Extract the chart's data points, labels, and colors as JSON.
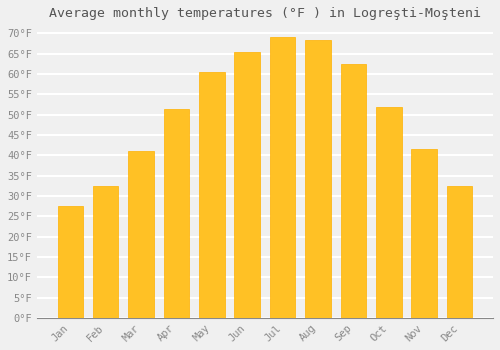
{
  "title": "Average monthly temperatures (°F ) in Logreşti-Moşteni",
  "months": [
    "Jan",
    "Feb",
    "Mar",
    "Apr",
    "May",
    "Jun",
    "Jul",
    "Aug",
    "Sep",
    "Oct",
    "Nov",
    "Dec"
  ],
  "values": [
    27.5,
    32.5,
    41.0,
    51.5,
    60.5,
    65.5,
    69.0,
    68.5,
    62.5,
    52.0,
    41.5,
    32.5
  ],
  "bar_color": "#FFC125",
  "bar_edge_color": "#FFB000",
  "ylim_min": 0,
  "ylim_max": 72,
  "ytick_step": 5,
  "background_color": "#f0f0f0",
  "plot_bg_color": "#f0f0f0",
  "grid_color": "#ffffff",
  "title_fontsize": 9.5,
  "tick_fontsize": 7.5,
  "font_family": "monospace",
  "tick_color": "#888888",
  "title_color": "#555555"
}
